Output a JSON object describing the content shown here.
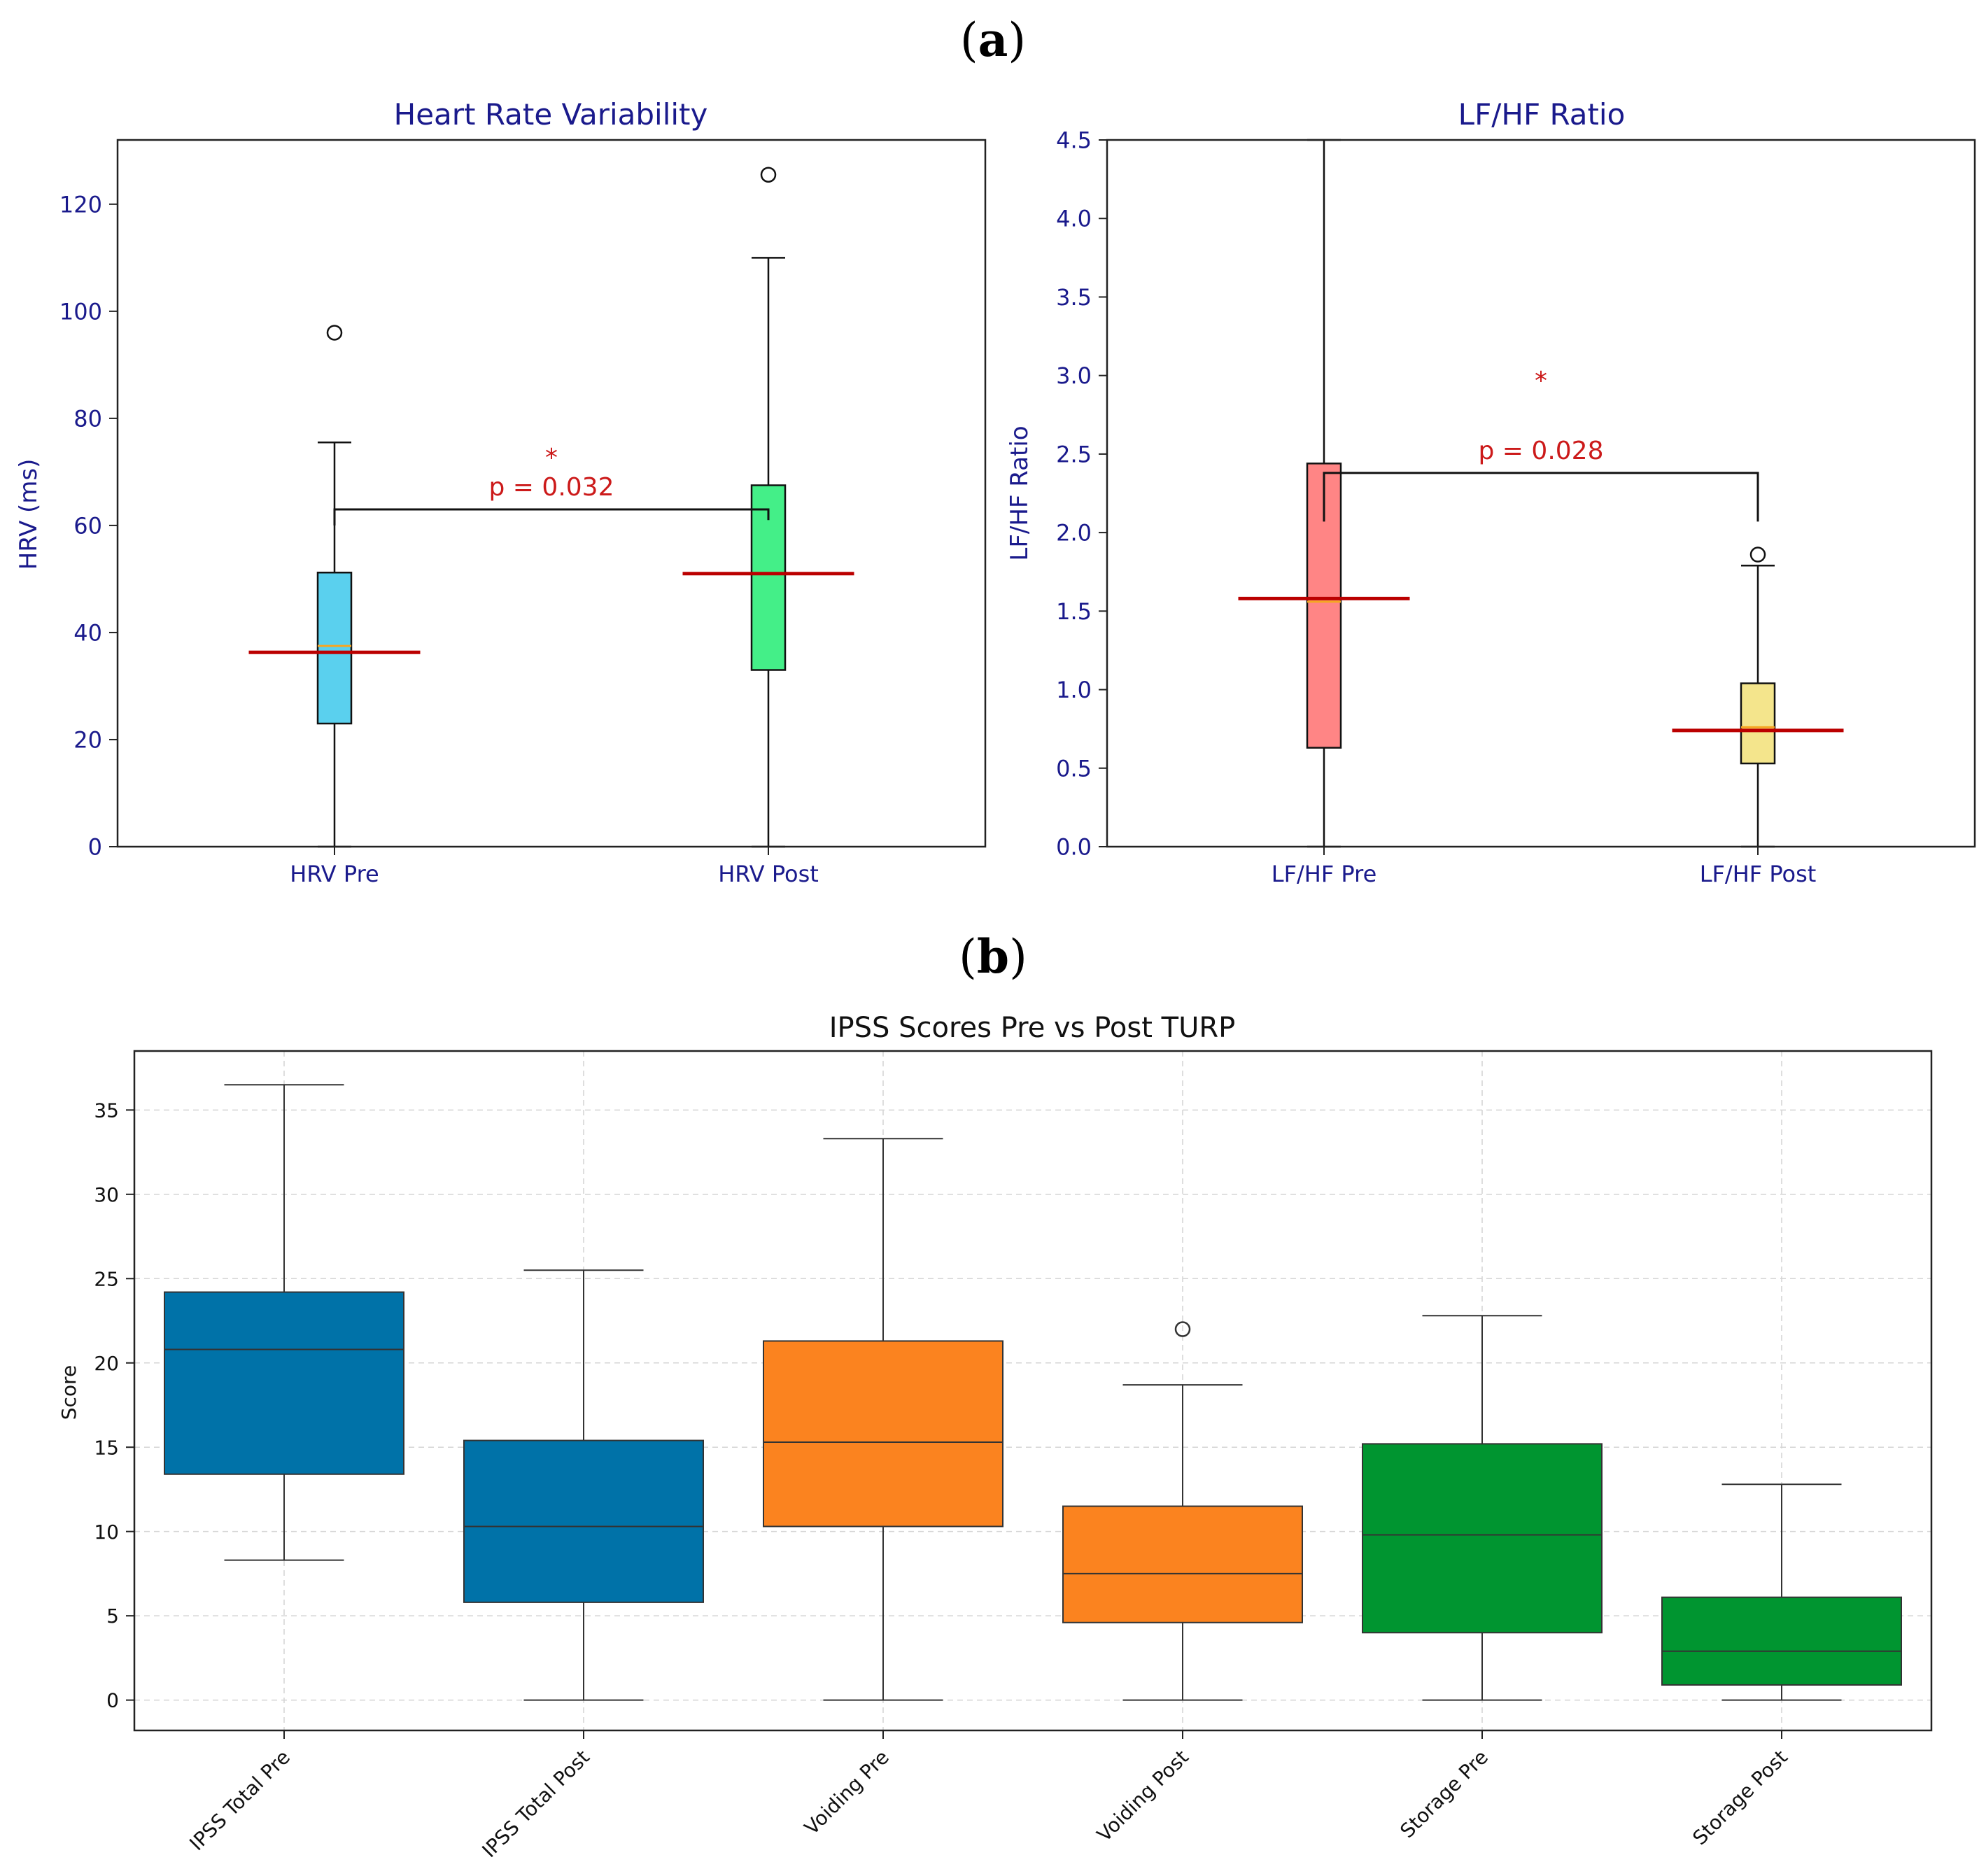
{
  "panels": {
    "a_label": "a",
    "b_label": "b"
  },
  "colors": {
    "hrv_pre": "#5ad0ee",
    "hrv_post": "#44ef88",
    "lfhf_pre": "#ff8585",
    "lfhf_post": "#f4e58c",
    "ipss_total": "#0072a8",
    "ipss_voiding": "#fb831f",
    "ipss_storage": "#009530",
    "mean_line": "#bb0000",
    "median_line": "#f5a623",
    "annotation": "#cc1a1a",
    "axis_text_blue": "#1a1a8c"
  },
  "chart_data": [
    {
      "id": "hrv",
      "type": "boxplot",
      "title": "Heart Rate Variability",
      "xlabel": "",
      "ylabel": "HRV (ms)",
      "ylim": [
        0,
        132
      ],
      "yticks": [
        0,
        20,
        40,
        60,
        80,
        100,
        120
      ],
      "grid": false,
      "categories": [
        "HRV Pre",
        "HRV Post"
      ],
      "boxes": [
        {
          "name": "HRV Pre",
          "whisker_low": 0,
          "q1": 23,
          "median": 37.5,
          "q3": 51.2,
          "whisker_high": 75.5,
          "mean": 36.3,
          "outliers": [
            96
          ]
        },
        {
          "name": "HRV Post",
          "whisker_low": 0,
          "q1": 33,
          "median": 51,
          "q3": 67.5,
          "whisker_high": 110,
          "mean": 51,
          "outliers": [
            125.5
          ]
        }
      ],
      "significance": {
        "star": "*",
        "text": "p = 0.032",
        "bracket_y": 63,
        "left_drop_to": 60,
        "right_drop_to": 61
      }
    },
    {
      "id": "lfhf",
      "type": "boxplot",
      "title": "LF/HF Ratio",
      "xlabel": "",
      "ylabel": "LF/HF Ratio",
      "ylim": [
        0,
        4.5
      ],
      "yticks": [
        "0.0",
        "0.5",
        "1.0",
        "1.5",
        "2.0",
        "2.5",
        "3.0",
        "3.5",
        "4.0",
        "4.5"
      ],
      "grid": false,
      "categories": [
        "LF/HF Pre",
        "LF/HF Post"
      ],
      "boxes": [
        {
          "name": "LF/HF Pre",
          "whisker_low": 0,
          "q1": 0.63,
          "median": 1.56,
          "q3": 2.44,
          "whisker_high": 4.5,
          "mean": 1.58,
          "outliers": []
        },
        {
          "name": "LF/HF Post",
          "whisker_low": 0,
          "q1": 0.53,
          "median": 0.76,
          "q3": 1.04,
          "whisker_high": 1.79,
          "mean": 0.74,
          "outliers": [
            1.86
          ]
        }
      ],
      "significance": {
        "star": "*",
        "text": "p = 0.028",
        "bracket_y": 2.38,
        "left_drop_to": 2.07,
        "right_drop_to": 2.07
      }
    },
    {
      "id": "ipss",
      "type": "boxplot",
      "title": "IPSS Scores Pre vs Post TURP",
      "xlabel": "",
      "ylabel": "Score",
      "ylim": [
        -1.8,
        38.5
      ],
      "yticks": [
        0,
        5,
        10,
        15,
        20,
        25,
        30,
        35
      ],
      "grid": true,
      "categories": [
        "IPSS Total Pre",
        "IPSS Total Post",
        "Voiding Pre",
        "Voiding Post",
        "Storage Pre",
        "Storage Post"
      ],
      "boxes": [
        {
          "name": "IPSS Total Pre",
          "whisker_low": 8.3,
          "q1": 13.4,
          "median": 20.8,
          "q3": 24.2,
          "whisker_high": 36.5,
          "outliers": []
        },
        {
          "name": "IPSS Total Post",
          "whisker_low": 0,
          "q1": 5.8,
          "median": 10.3,
          "q3": 15.4,
          "whisker_high": 25.5,
          "outliers": []
        },
        {
          "name": "Voiding Pre",
          "whisker_low": 0,
          "q1": 10.3,
          "median": 15.3,
          "q3": 21.3,
          "whisker_high": 33.3,
          "outliers": []
        },
        {
          "name": "Voiding Post",
          "whisker_low": 0,
          "q1": 4.6,
          "median": 7.5,
          "q3": 11.5,
          "whisker_high": 18.7,
          "outliers": [
            22
          ]
        },
        {
          "name": "Storage Pre",
          "whisker_low": 0,
          "q1": 4.0,
          "median": 9.8,
          "q3": 15.2,
          "whisker_high": 22.8,
          "outliers": []
        },
        {
          "name": "Storage Post",
          "whisker_low": 0,
          "q1": 0.9,
          "median": 2.9,
          "q3": 6.1,
          "whisker_high": 12.8,
          "outliers": []
        }
      ]
    }
  ]
}
